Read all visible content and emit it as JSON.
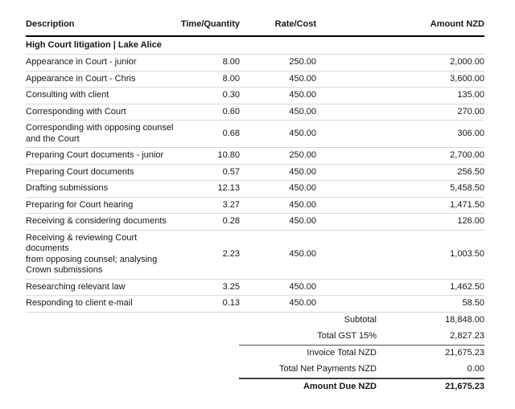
{
  "colors": {
    "background": "#ffffff",
    "text": "#161616",
    "header_rule": "#000000",
    "row_rule": "#d9d9d9",
    "summary_rule": "#4d4d4d"
  },
  "table": {
    "columns": {
      "description": "Description",
      "time_quantity": "Time/Quantity",
      "rate_cost": "Rate/Cost",
      "amount_nzd": "Amount NZD"
    },
    "section_header": "High Court litigation | Lake Alice",
    "rows": [
      {
        "description": "Appearance in Court - junior",
        "qty": "8.00",
        "rate": "250.00",
        "amount": "2,000.00"
      },
      {
        "description": "Appearance in Court - Chris",
        "qty": "8.00",
        "rate": "450.00",
        "amount": "3,600.00"
      },
      {
        "description": "Consulting with client",
        "qty": "0.30",
        "rate": "450.00",
        "amount": "135.00"
      },
      {
        "description": "Corresponding with Court",
        "qty": "0.60",
        "rate": "450.00",
        "amount": "270.00"
      },
      {
        "description": "Corresponding with opposing counsel\nand the Court",
        "qty": "0.68",
        "rate": "450.00",
        "amount": "306.00"
      },
      {
        "description": "Preparing Court documents - junior",
        "qty": "10.80",
        "rate": "250.00",
        "amount": "2,700.00"
      },
      {
        "description": "Preparing Court documents",
        "qty": "0.57",
        "rate": "450.00",
        "amount": "256.50"
      },
      {
        "description": "Drafting submissions",
        "qty": "12.13",
        "rate": "450.00",
        "amount": "5,458.50"
      },
      {
        "description": "Preparing for Court hearing",
        "qty": "3.27",
        "rate": "450.00",
        "amount": "1,471.50"
      },
      {
        "description": "Receiving & considering documents",
        "qty": "0.28",
        "rate": "450.00",
        "amount": "126.00"
      },
      {
        "description": "Receiving & reviewing Court documents\nfrom opposing counsel; analysing\nCrown submissions",
        "qty": "2.23",
        "rate": "450.00",
        "amount": "1,003.50"
      },
      {
        "description": "Researching relevant law",
        "qty": "3.25",
        "rate": "450.00",
        "amount": "1,462.50"
      },
      {
        "description": "Responding to client e-mail",
        "qty": "0.13",
        "rate": "450.00",
        "amount": "58.50"
      }
    ]
  },
  "summary": {
    "rows": [
      {
        "label": "Subtotal",
        "value": "18,848.00"
      },
      {
        "label": "Total GST 15%",
        "value": "2,827.23"
      },
      {
        "label": "Invoice Total NZD",
        "value": "21,675.23"
      },
      {
        "label": "Total Net Payments NZD",
        "value": "0.00"
      },
      {
        "label": "Amount Due NZD",
        "value": "21,675.23"
      }
    ]
  }
}
